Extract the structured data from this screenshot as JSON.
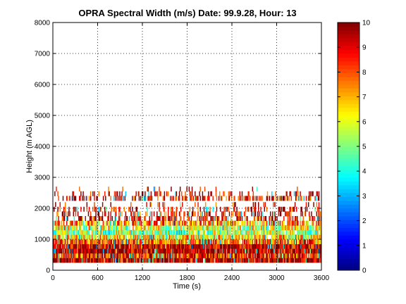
{
  "chart_data": {
    "type": "heatmap",
    "title": "OPRA Spectral Width (m/s)  Date: 99.9.28, Hour: 13",
    "xlabel": "Time (s)",
    "ylabel": "Height (m AGL)",
    "xlim": [
      0,
      3600
    ],
    "ylim": [
      0,
      8000
    ],
    "xticks": [
      0,
      600,
      1200,
      1800,
      2400,
      3000,
      3600
    ],
    "xtick_labels": [
      "0",
      "600",
      "1200",
      "1800",
      "2400",
      "3000",
      "3600"
    ],
    "yticks": [
      0,
      1000,
      2000,
      3000,
      4000,
      5000,
      6000,
      7000,
      8000
    ],
    "ytick_labels": [
      "0",
      "1000",
      "2000",
      "3000",
      "4000",
      "5000",
      "6000",
      "7000",
      "8000"
    ],
    "grid": true,
    "colorbar": {
      "range": [
        0,
        10
      ],
      "ticks": [
        0,
        1,
        2,
        3,
        4,
        5,
        6,
        7,
        8,
        9,
        10
      ],
      "tick_labels": [
        "0",
        "1",
        "2",
        "3",
        "4",
        "5",
        "6",
        "7",
        "8",
        "9",
        "10"
      ],
      "colormap": "jet"
    },
    "layers": [
      {
        "height_m": [
          250,
          400
        ],
        "value": 9.7,
        "coverage": 0.97
      },
      {
        "height_m": [
          400,
          550
        ],
        "value": 8.5,
        "coverage": 0.95
      },
      {
        "height_m": [
          550,
          700
        ],
        "value": 9.6,
        "coverage": 0.98
      },
      {
        "height_m": [
          700,
          850
        ],
        "value": 9.3,
        "coverage": 0.97
      },
      {
        "height_m": [
          850,
          1000
        ],
        "value": 8.0,
        "coverage": 0.9
      },
      {
        "height_m": [
          1000,
          1150
        ],
        "value": 6.5,
        "coverage": 0.88
      },
      {
        "height_m": [
          1150,
          1300
        ],
        "value": 5.5,
        "coverage": 0.85
      },
      {
        "height_m": [
          1300,
          1450
        ],
        "value": 6.0,
        "coverage": 0.8
      },
      {
        "height_m": [
          1450,
          1600
        ],
        "value": 7.5,
        "coverage": 0.65
      },
      {
        "height_m": [
          1600,
          1750
        ],
        "value": 8.8,
        "coverage": 0.45
      },
      {
        "height_m": [
          1750,
          1900
        ],
        "value": 9.0,
        "coverage": 0.35
      },
      {
        "height_m": [
          1900,
          2050
        ],
        "value": 9.2,
        "coverage": 0.25
      },
      {
        "height_m": [
          2050,
          2200
        ],
        "value": 9.3,
        "coverage": 0.1
      },
      {
        "height_m": [
          2250,
          2400
        ],
        "value": 9.0,
        "coverage": 0.45
      },
      {
        "height_m": [
          2400,
          2550
        ],
        "value": 9.4,
        "coverage": 0.2
      },
      {
        "height_m": [
          2550,
          2700
        ],
        "value": 9.5,
        "coverage": 0.05
      }
    ],
    "data_extent_x": [
      0,
      3600
    ],
    "data_extent_height_m": [
      250,
      2700
    ]
  }
}
